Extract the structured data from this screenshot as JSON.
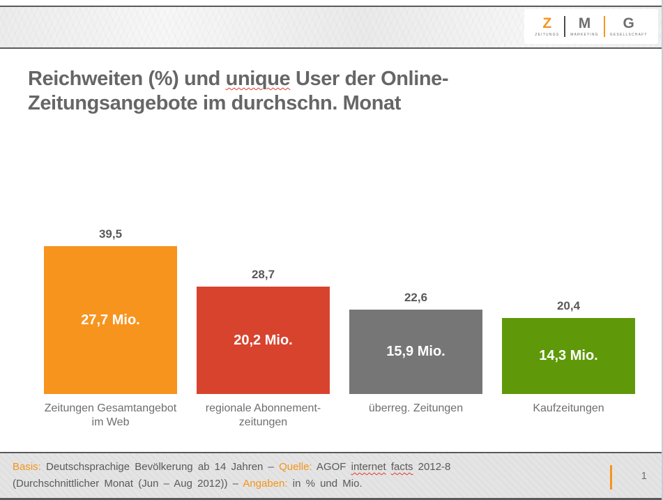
{
  "header": {
    "logo": {
      "columns": [
        {
          "letter": "Z",
          "word": "ZEITUNGS"
        },
        {
          "letter": "M",
          "word": "MARKETING"
        },
        {
          "letter": "G",
          "word": "GESELLSCHAFT"
        }
      ]
    }
  },
  "title": {
    "line1_segments": [
      {
        "text": "Reichweiten (%) und "
      },
      {
        "text": "unique",
        "style": "misspell"
      },
      {
        "text": " User der Online-"
      }
    ],
    "line2": "Zeitungsangebote im durchschn. Monat"
  },
  "chart_data": {
    "type": "bar",
    "title": "Reichweiten (%) und unique User der Online-Zeitungsangebote im durchschn. Monat",
    "categories": [
      "Zeitungen Gesamtangebot\nim Web",
      "regionale Abonnement-\nzeitungen",
      "überreg. Zeitungen",
      "Kaufzeitungen"
    ],
    "values": [
      39.5,
      28.7,
      22.6,
      20.4
    ],
    "value_labels": [
      "39,5",
      "28,7",
      "22,6",
      "20,4"
    ],
    "bar_labels": [
      "27,7 Mio.",
      "20,2 Mio.",
      "15,9 Mio.",
      "14,3 Mio."
    ],
    "colors": [
      "#F7941E",
      "#D8432E",
      "#767676",
      "#5F990A"
    ],
    "ylim": [
      0,
      40
    ],
    "grid": false,
    "legend": false
  },
  "footer": {
    "line1_segments": [
      {
        "text": "Basis:",
        "style": "accent"
      },
      {
        "text": " Deutschsprachige Bevölkerung ab 14 Jahren – "
      },
      {
        "text": "Quelle:",
        "style": "accent"
      },
      {
        "text": " AGOF "
      },
      {
        "text": "internet",
        "style": "misspell"
      },
      {
        "text": " "
      },
      {
        "text": "facts",
        "style": "misspell"
      },
      {
        "text": " 2012-8"
      }
    ],
    "line2_segments": [
      {
        "text": "(Durchschnittlicher Monat (Jun – Aug 2012)) – "
      },
      {
        "text": "Angaben:",
        "style": "accent"
      },
      {
        "text": " in % und Mio."
      }
    ],
    "page_number": "1"
  },
  "colors": {
    "accent": "#F7941E",
    "rule": "#595A5C",
    "footer_bg": "#E4E4E4"
  }
}
